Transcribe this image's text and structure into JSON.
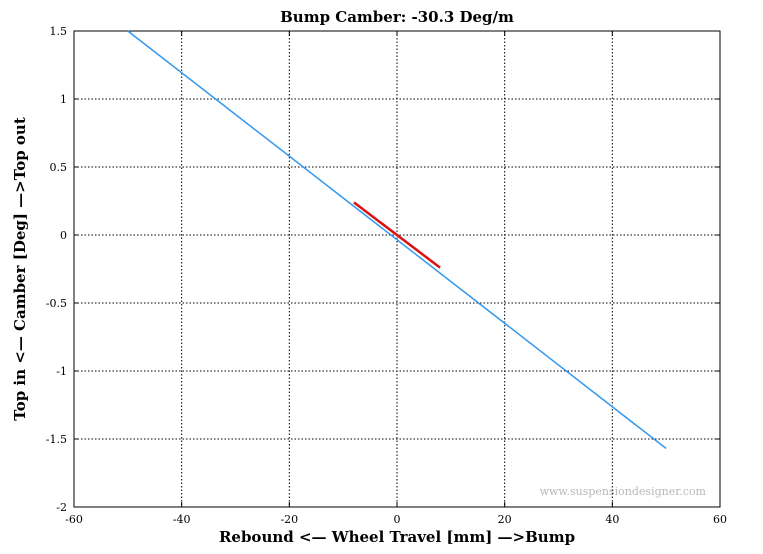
{
  "chart_data": {
    "type": "line",
    "title": "Bump Camber: -30.3 Deg/m",
    "xlabel": "Rebound <— Wheel Travel [mm] —>Bump",
    "ylabel": "Top in <— Camber [Deg] —>Top out",
    "xlim": [
      -60,
      60
    ],
    "ylim": [
      -2,
      1.5
    ],
    "xticks": [
      -60,
      -40,
      -20,
      0,
      20,
      40,
      60
    ],
    "yticks": [
      1.5,
      1,
      0.5,
      0,
      -0.5,
      -1,
      -1.5,
      -2
    ],
    "xtick_labels": [
      "-60",
      "-40",
      "-20",
      "0",
      "20",
      "40",
      "60"
    ],
    "ytick_labels": [
      "1.5",
      "1",
      "0.5",
      "0",
      "-0.5",
      "-1",
      "-1.5",
      "-2"
    ],
    "grid": true,
    "series": [
      {
        "color": "#3399ee",
        "x": [
          -50,
          50
        ],
        "y": [
          1.5,
          -1.57
        ]
      },
      {
        "color": "#dd1111",
        "x": [
          -8,
          8
        ],
        "y": [
          0.24,
          -0.24
        ]
      }
    ],
    "watermark": "www.suspensiondesigner.com"
  }
}
